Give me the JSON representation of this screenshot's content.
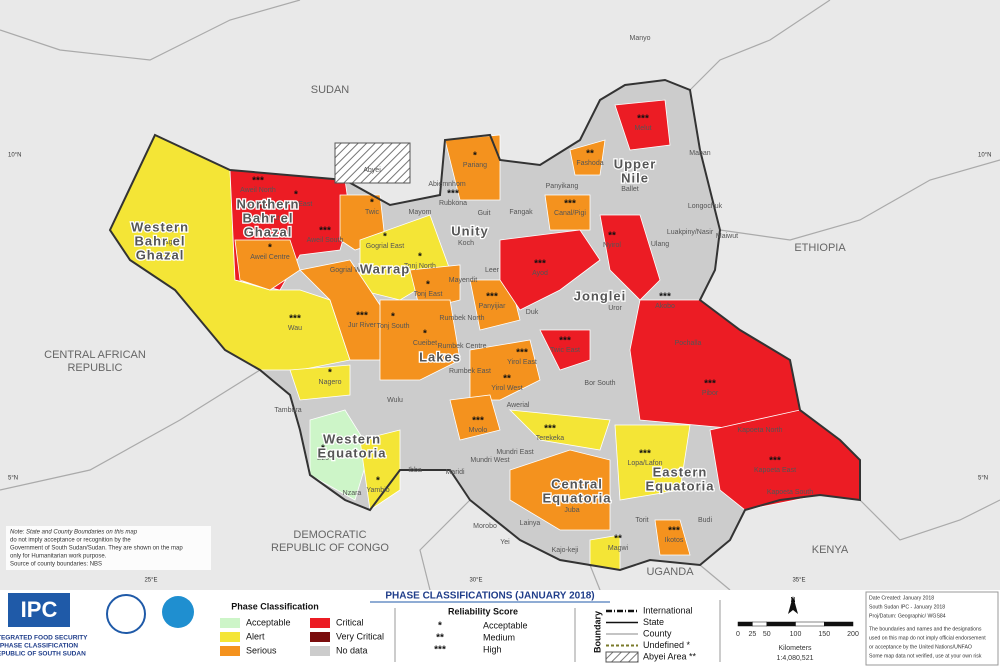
{
  "title": "PHASE CLASSIFICATIONS (JANUARY 2018)",
  "countries": [
    {
      "lines": [
        "SUDAN"
      ]
    },
    {
      "lines": [
        "ETHIOPIA"
      ]
    },
    {
      "lines": [
        "CENTRAL AFRICAN",
        "REPUBLIC"
      ]
    },
    {
      "lines": [
        "DEMOCRATIC",
        "REPUBLIC OF CONGO"
      ]
    },
    {
      "lines": [
        "UGANDA"
      ]
    },
    {
      "lines": [
        "KENYA"
      ]
    }
  ],
  "states": [
    {
      "lines": [
        "Northern",
        "Bahr el",
        "Ghazal"
      ]
    },
    {
      "lines": [
        "Western",
        "Bahr el",
        "Ghazal"
      ]
    },
    {
      "lines": [
        "Warrap"
      ]
    },
    {
      "lines": [
        "Unity"
      ]
    },
    {
      "lines": [
        "Upper",
        "Nile"
      ]
    },
    {
      "lines": [
        "Jonglei"
      ]
    },
    {
      "lines": [
        "Lakes"
      ]
    },
    {
      "lines": [
        "Western",
        "Equatoria"
      ]
    },
    {
      "lines": [
        "Central",
        "Equatoria"
      ]
    },
    {
      "lines": [
        "Eastern",
        "Equatoria"
      ]
    }
  ],
  "abyei": "Abyei",
  "counties": [
    {
      "name": "Manyo"
    },
    {
      "name": "Melut",
      "stars": "***"
    },
    {
      "name": "Maban"
    },
    {
      "name": "Fashoda",
      "stars": "**"
    },
    {
      "name": "Panyikang"
    },
    {
      "name": "Ballet"
    },
    {
      "name": "Longochuk"
    },
    {
      "name": "Luakpiny/Nasir"
    },
    {
      "name": "Maiwut"
    },
    {
      "name": "Nyirol",
      "stars": "**"
    },
    {
      "name": "Ulang"
    },
    {
      "name": "Canal/Pigi",
      "stars": "***"
    },
    {
      "name": "Fangak"
    },
    {
      "name": "Pariang",
      "stars": "*"
    },
    {
      "name": "Abiemnhom"
    },
    {
      "name": "Rubkona",
      "stars": "***"
    },
    {
      "name": "Guit"
    },
    {
      "name": "Mayom"
    },
    {
      "name": "Koch"
    },
    {
      "name": "Mayendit"
    },
    {
      "name": "Leer"
    },
    {
      "name": "Panyijiar",
      "stars": "***"
    },
    {
      "name": "Ayod",
      "stars": "***"
    },
    {
      "name": "Duk"
    },
    {
      "name": "Uror"
    },
    {
      "name": "Akobo",
      "stars": "***"
    },
    {
      "name": "Pochalla"
    },
    {
      "name": "Twic East",
      "stars": "***"
    },
    {
      "name": "Bor South"
    },
    {
      "name": "Pibor",
      "stars": "***"
    },
    {
      "name": "Aweil North",
      "stars": "***"
    },
    {
      "name": "Aweil East",
      "stars": "*"
    },
    {
      "name": "Aweil West",
      "stars": "***"
    },
    {
      "name": "Aweil South",
      "stars": "***"
    },
    {
      "name": "Aweil Centre",
      "stars": "*"
    },
    {
      "name": "Twic",
      "stars": "*"
    },
    {
      "name": "Gogrial East",
      "stars": "*"
    },
    {
      "name": "Gogrial West"
    },
    {
      "name": "Tonj North",
      "stars": "*"
    },
    {
      "name": "Tonj East",
      "stars": "*"
    },
    {
      "name": "Tonj South",
      "stars": "*"
    },
    {
      "name": "Raga",
      "stars": "***"
    },
    {
      "name": "Wau",
      "stars": "***"
    },
    {
      "name": "Jur River",
      "stars": "***"
    },
    {
      "name": "Cueibet",
      "stars": "*"
    },
    {
      "name": "Rumbek North"
    },
    {
      "name": "Rumbek Centre"
    },
    {
      "name": "Rumbek East"
    },
    {
      "name": "Yirol East",
      "stars": "***"
    },
    {
      "name": "Yirol West",
      "stars": "**"
    },
    {
      "name": "Awerial"
    },
    {
      "name": "Wulu"
    },
    {
      "name": "Mvolo",
      "stars": "***"
    },
    {
      "name": "Terekeka",
      "stars": "***"
    },
    {
      "name": "Mundri West"
    },
    {
      "name": "Mundri East"
    },
    {
      "name": "Maridi"
    },
    {
      "name": "Ibba"
    },
    {
      "name": "Nagero",
      "stars": "*"
    },
    {
      "name": "Tambura"
    },
    {
      "name": "Ezo",
      "stars": "*"
    },
    {
      "name": "Nzara"
    },
    {
      "name": "Yambio",
      "stars": "*"
    },
    {
      "name": "Juba",
      "stars": "***"
    },
    {
      "name": "Lainya"
    },
    {
      "name": "Yei"
    },
    {
      "name": "Morobo"
    },
    {
      "name": "Kajo-keji"
    },
    {
      "name": "Lopa/Lafon",
      "stars": "***"
    },
    {
      "name": "Kapoeta East",
      "stars": "***"
    },
    {
      "name": "Kapoeta North"
    },
    {
      "name": "Kapoeta South"
    },
    {
      "name": "Budi"
    },
    {
      "name": "Torit"
    },
    {
      "name": "Ikotos",
      "stars": "***"
    },
    {
      "name": "Magwi",
      "stars": "**"
    }
  ],
  "graticule": {
    "lat": [
      "10°N",
      "5°N"
    ],
    "lon": [
      "25°E",
      "30°E",
      "35°E"
    ]
  },
  "note": [
    "Note: State and County Boundaries on this map",
    "do not imply acceptance or recognition by the",
    "Government of South Sudan/Sudan. They are shown on the map",
    "only for Humanitarian work purpose.",
    "Source of county boundaries: NBS"
  ],
  "logo": {
    "acronym": "IPC",
    "lines": [
      "INTEGRATED FOOD SECURITY",
      "PHASE CLASSIFICATION",
      "REPUBLIC OF SOUTH SUDAN"
    ]
  },
  "phase_legend": {
    "title": "Phase Classification",
    "items": [
      {
        "label": "Acceptable",
        "color": "#cdf5c8"
      },
      {
        "label": "Alert",
        "color": "#f4e536"
      },
      {
        "label": "Serious",
        "color": "#f4921e"
      },
      {
        "label": "Critical",
        "color": "#ec1c24"
      },
      {
        "label": "Very Critical",
        "color": "#7a0c0c"
      },
      {
        "label": "No data",
        "color": "#cccccc"
      }
    ]
  },
  "reliability": {
    "title": "Reliability Score",
    "items": [
      {
        "symbol": "*",
        "label": "Acceptable"
      },
      {
        "symbol": "**",
        "label": "Medium"
      },
      {
        "symbol": "***",
        "label": "High"
      }
    ]
  },
  "boundary": {
    "title": "Boundary",
    "items": [
      "International",
      "State",
      "County",
      "Undefined *",
      "Abyei Area **"
    ]
  },
  "north": "N",
  "scale": {
    "ticks": [
      0,
      25,
      50,
      100,
      150,
      200
    ],
    "unit": "Kilometers",
    "ratio": "1:4,080,521"
  },
  "info": [
    "Date Created: January 2018",
    "South Sudan IPC - January 2018",
    "Proj/Datum: Geographic/ WGS84",
    "The boundaries and names and the designations",
    "used on this map do not imply official endorsement",
    "or acceptance by the United Nations/UNFAO",
    "Some map data not verified, use at your own risk"
  ]
}
